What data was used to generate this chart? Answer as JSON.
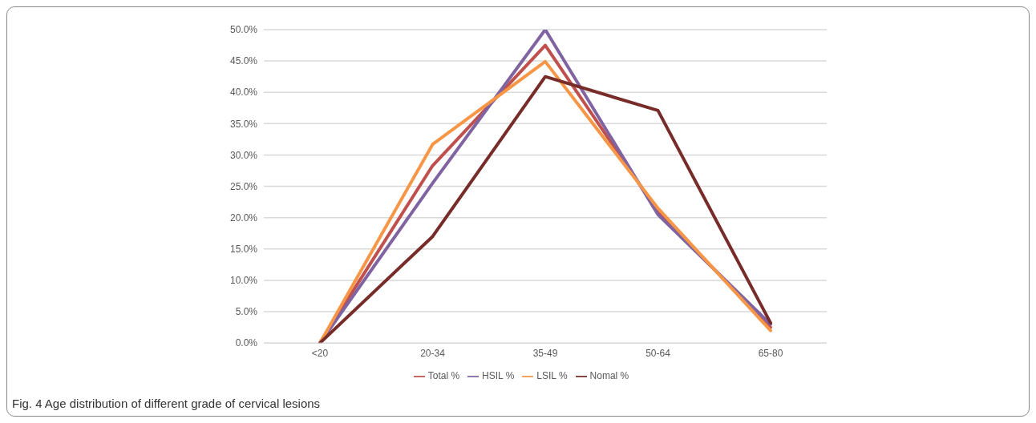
{
  "chart_data": {
    "type": "line",
    "categories": [
      "<20",
      "20-34",
      "35-49",
      "50-64",
      "65-80"
    ],
    "series": [
      {
        "name": "Total  %",
        "color": "#c0504d",
        "values": [
          0,
          28.3,
          47.5,
          21,
          2.5
        ]
      },
      {
        "name": "HSIL %",
        "color": "#8064a2",
        "values": [
          0,
          25.5,
          50,
          20.5,
          3
        ]
      },
      {
        "name": "LSIL %",
        "color": "#f79646",
        "values": [
          0,
          31.7,
          44.9,
          21.5,
          2
        ]
      },
      {
        "name": "Nomal %",
        "color": "#772c2a",
        "values": [
          0,
          17,
          42.5,
          37.1,
          3.2
        ]
      }
    ],
    "ylim": [
      0,
      50
    ],
    "yticks": [
      {
        "value": 0,
        "label": "0.0%"
      },
      {
        "value": 5,
        "label": "5.0%"
      },
      {
        "value": 10,
        "label": "10.0%"
      },
      {
        "value": 15,
        "label": "15.0%"
      },
      {
        "value": 20,
        "label": "20.0%"
      },
      {
        "value": 25,
        "label": "25.0%"
      },
      {
        "value": 30,
        "label": "30.0%"
      },
      {
        "value": 35,
        "label": "35.0%"
      },
      {
        "value": 40,
        "label": "40.0%"
      },
      {
        "value": 45,
        "label": "45.0%"
      },
      {
        "value": 50,
        "label": "50.0%"
      }
    ],
    "grid": "y",
    "legend": "bottom",
    "annotations": [
      "Fig. 4 Age distribution of different grade of cervical lesions"
    ]
  }
}
